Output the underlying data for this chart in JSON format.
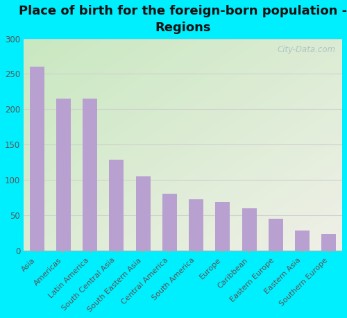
{
  "title": "Place of birth for the foreign-born population -\nRegions",
  "categories": [
    "Asia",
    "Americas",
    "Latin America",
    "South Central Asia",
    "South Eastern Asia",
    "Central America",
    "South America",
    "Europe",
    "Caribbean",
    "Eastern Europe",
    "Eastern Asia",
    "Southern Europe"
  ],
  "values": [
    260,
    215,
    215,
    128,
    105,
    80,
    72,
    68,
    60,
    45,
    28,
    23
  ],
  "bar_color": "#b8a0d0",
  "bg_color_topleft": "#c8e8c0",
  "bg_color_bottomright": "#f0f0e8",
  "outer_bg": "#00efff",
  "ylim": [
    0,
    300
  ],
  "yticks": [
    0,
    50,
    100,
    150,
    200,
    250,
    300
  ],
  "watermark": "City-Data.com",
  "title_fontsize": 13,
  "tick_fontsize": 8,
  "ylabel_color": "#555555",
  "grid_color": "#d0d0d0"
}
